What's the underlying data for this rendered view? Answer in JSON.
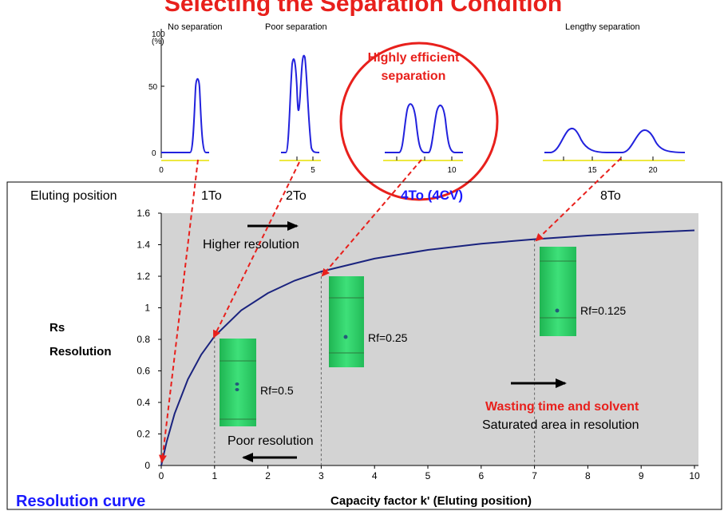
{
  "header": {
    "title": "Selecting the Separation Condition"
  },
  "chromatograms": {
    "ylabel_top": "100",
    "ylabel_unit": "(%)",
    "y_ticks": [
      "50",
      "0"
    ],
    "x_ticks": [
      "0",
      "5",
      "10",
      "15",
      "20"
    ],
    "labels": {
      "no_sep": "No separation",
      "poor_sep": "Poor separation",
      "lengthy_sep": "Lengthy separation",
      "efficient_sep_line1": "Highly efficient",
      "efficient_sep_line2": "separation"
    }
  },
  "eluting": {
    "title": "Eluting position",
    "positions": [
      "1To",
      "2To",
      "4To (4CV)",
      "8To"
    ]
  },
  "tlc": [
    {
      "k": 1,
      "label": "Rf=0.5"
    },
    {
      "k": 3,
      "label": "Rf=0.25"
    },
    {
      "k": 7,
      "label": "Rf=0.125"
    }
  ],
  "annotations": {
    "higher_resolution": "Higher resolution",
    "poor_resolution": "Poor resolution",
    "wasting": "Wasting time and solvent",
    "saturated": "Saturated area in resolution",
    "resolution_curve": "Resolution curve"
  },
  "colors": {
    "curve": "#1a237e",
    "accent_red": "#e8201c",
    "accent_blue": "#1a1aff",
    "plot_bg": "#d3d3d3",
    "tlc_green": "#35d66a",
    "peak_blue": "#2222dd",
    "baseline_yellow": "#e8e000"
  },
  "chart_data": {
    "type": "line",
    "title": "",
    "ylabel": "Rs\nResolution",
    "xlabel": "Capacity factor k' (Eluting position)",
    "xlim": [
      0,
      10
    ],
    "ylim": [
      0,
      1.6
    ],
    "x_ticks": [
      0,
      1,
      2,
      3,
      4,
      5,
      6,
      7,
      8,
      9,
      10
    ],
    "y_ticks": [
      0,
      0.2,
      0.4,
      0.6,
      0.8,
      1,
      1.2,
      1.4,
      1.6
    ],
    "y_tick_labels": [
      "0",
      "0.2",
      "0.4",
      "0.6",
      "0.8",
      "1",
      "1.2",
      "1.4",
      "1.6"
    ],
    "grid": false,
    "series": [
      {
        "x": [
          0,
          0.1,
          0.25,
          0.5,
          0.75,
          1,
          1.5,
          2,
          2.5,
          3,
          4,
          5,
          6,
          7,
          8,
          9,
          10
        ],
        "values": [
          0,
          0.149,
          0.328,
          0.547,
          0.703,
          0.82,
          0.984,
          1.093,
          1.172,
          1.23,
          1.312,
          1.367,
          1.406,
          1.435,
          1.458,
          1.476,
          1.491
        ]
      }
    ],
    "markers": [
      1,
      3,
      7
    ]
  }
}
